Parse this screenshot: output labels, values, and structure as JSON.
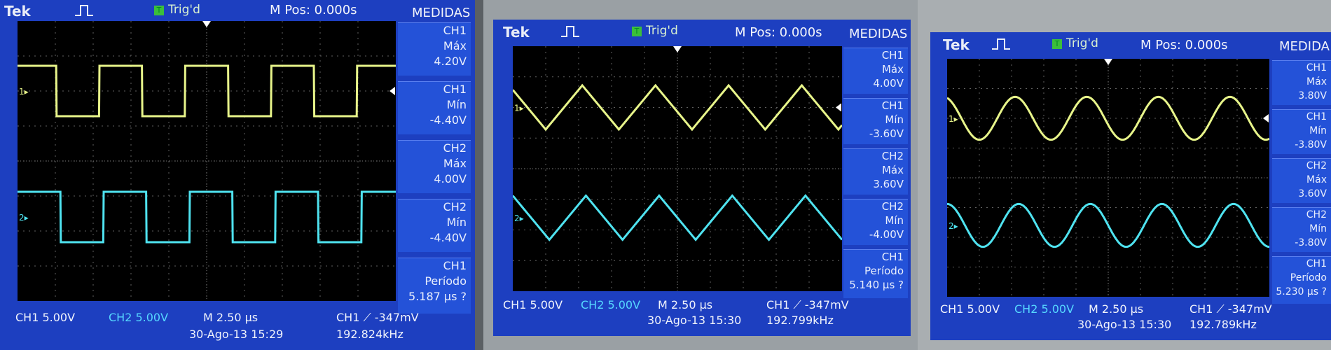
{
  "panels": [
    {
      "brand": "Tek",
      "trig": "Trig'd",
      "mpos": "M Pos: 0.000s",
      "menu_title": "MEDIDAS",
      "ch1_marker": "1",
      "ch2_marker": "2",
      "measurements": [
        {
          "ch": "CH1",
          "label": "Máx",
          "value": "4.20V"
        },
        {
          "ch": "CH1",
          "label": "Mín",
          "value": "-4.40V"
        },
        {
          "ch": "CH2",
          "label": "Máx",
          "value": "4.00V"
        },
        {
          "ch": "CH2",
          "label": "Mín",
          "value": "-4.40V"
        },
        {
          "ch": "CH1",
          "label": "Período",
          "value": "5.187 µs ?"
        }
      ],
      "ch1_scale": "CH1  5.00V",
      "ch2_scale": "CH2  5.00V",
      "timebase": "M 2.50 µs",
      "trigger": "CH1 ⟋ -347mV",
      "datetime": "30-Ago-13 15:29",
      "frequency": "192.824kHz",
      "wave": "square",
      "wave_cycles": 4.4
    },
    {
      "brand": "Tek",
      "trig": "Trig'd",
      "mpos": "M Pos: 0.000s",
      "menu_title": "MEDIDAS",
      "ch1_marker": "1",
      "ch2_marker": "2",
      "measurements": [
        {
          "ch": "CH1",
          "label": "Máx",
          "value": "4.00V"
        },
        {
          "ch": "CH1",
          "label": "Mín",
          "value": "-3.60V"
        },
        {
          "ch": "CH2",
          "label": "Máx",
          "value": "3.60V"
        },
        {
          "ch": "CH2",
          "label": "Mín",
          "value": "-4.00V"
        },
        {
          "ch": "CH1",
          "label": "Período",
          "value": "5.140 µs ?"
        }
      ],
      "ch1_scale": "CH1  5.00V",
      "ch2_scale": "CH2  5.00V",
      "timebase": "M 2.50 µs",
      "trigger": "CH1 ⟋ -347mV",
      "datetime": "30-Ago-13 15:30",
      "frequency": "192.799kHz",
      "wave": "triangle",
      "wave_cycles": 4.5
    },
    {
      "brand": "Tek",
      "trig": "Trig'd",
      "mpos": "M Pos: 0.000s",
      "menu_title": "MEDIDA",
      "ch1_marker": "1",
      "ch2_marker": "2",
      "measurements": [
        {
          "ch": "CH1",
          "label": "Máx",
          "value": "3.80V"
        },
        {
          "ch": "CH1",
          "label": "Mín",
          "value": "-3.80V"
        },
        {
          "ch": "CH2",
          "label": "Máx",
          "value": "3.60V"
        },
        {
          "ch": "CH2",
          "label": "Mín",
          "value": "-3.80V"
        },
        {
          "ch": "CH1",
          "label": "Período",
          "value": "5.230 µs ?"
        }
      ],
      "ch1_scale": "CH1  5.00V",
      "ch2_scale": "CH2  5.00V",
      "timebase": "M 2.50 µs",
      "trigger": "CH1 ⟋ -347mV",
      "datetime": "30-Ago-13 15:30",
      "frequency": "192.789kHz",
      "wave": "sine",
      "wave_cycles": 4.5
    }
  ],
  "colors": {
    "screen": "#1d3fc0",
    "ch1": "#e8f58a",
    "ch2": "#4fe3f0",
    "grid": "#5f5f5f"
  }
}
